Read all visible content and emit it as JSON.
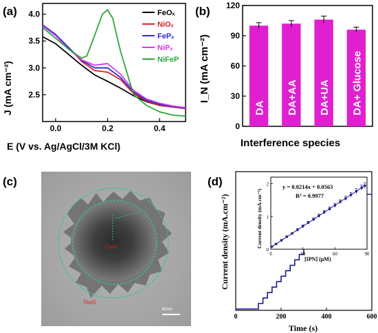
{
  "panels": {
    "a": {
      "label": "(a)"
    },
    "b": {
      "label": "(b)"
    },
    "c": {
      "label": "(c)",
      "core_label": "Core",
      "shell_label": "Shell",
      "scale_label": "80nm"
    },
    "d": {
      "label": "(d)",
      "equation": "y = 0.0214x + 0.0563",
      "r_squared": "R² = 0.9977"
    }
  },
  "chart_data": [
    {
      "panel": "a",
      "type": "line",
      "xlabel": "E (V vs. Ag/AgCl/3M KCl)",
      "ylabel": "J (mA cm⁻²)",
      "xlim": [
        -0.05,
        0.5
      ],
      "ylim": [
        2.0,
        4.2
      ],
      "xticks": [
        "0.0",
        "0.2",
        "0.4"
      ],
      "yticks": [
        "2.5",
        "3.0",
        "3.5",
        "4.0"
      ],
      "legend_position": "top-right",
      "series": [
        {
          "name": "FeOₓ",
          "color": "#000000",
          "x": [
            -0.05,
            0.0,
            0.05,
            0.1,
            0.15,
            0.2,
            0.25,
            0.3,
            0.35,
            0.4,
            0.45,
            0.5
          ],
          "y": [
            3.58,
            3.45,
            3.25,
            3.05,
            2.87,
            2.75,
            2.62,
            2.48,
            2.37,
            2.3,
            2.27,
            2.25
          ]
        },
        {
          "name": "NiOₓ",
          "color": "#e0202a",
          "x": [
            -0.05,
            0.0,
            0.05,
            0.1,
            0.15,
            0.2,
            0.25,
            0.3,
            0.35,
            0.4,
            0.45,
            0.5
          ],
          "y": [
            3.8,
            3.62,
            3.38,
            3.12,
            2.95,
            2.92,
            2.78,
            2.52,
            2.38,
            2.3,
            2.27,
            2.24
          ]
        },
        {
          "name": "FePₓ",
          "color": "#2a2adc",
          "x": [
            -0.05,
            0.0,
            0.05,
            0.1,
            0.15,
            0.2,
            0.25,
            0.3,
            0.35,
            0.4,
            0.45,
            0.5
          ],
          "y": [
            3.8,
            3.62,
            3.38,
            3.14,
            3.0,
            3.0,
            2.82,
            2.55,
            2.4,
            2.32,
            2.28,
            2.25
          ]
        },
        {
          "name": "NiPₓ",
          "color": "#d43ce8",
          "x": [
            -0.05,
            0.0,
            0.05,
            0.1,
            0.15,
            0.2,
            0.25,
            0.3,
            0.35,
            0.4,
            0.45,
            0.5
          ],
          "y": [
            3.78,
            3.6,
            3.35,
            3.15,
            3.05,
            3.08,
            2.88,
            2.58,
            2.42,
            2.34,
            2.29,
            2.26
          ]
        },
        {
          "name": "NiFeP",
          "color": "#2aa838",
          "x": [
            -0.05,
            0.0,
            0.05,
            0.1,
            0.12,
            0.15,
            0.18,
            0.2,
            0.22,
            0.25,
            0.3,
            0.35,
            0.4,
            0.45,
            0.5
          ],
          "y": [
            3.75,
            3.55,
            3.35,
            3.18,
            3.22,
            3.6,
            4.0,
            4.08,
            3.92,
            3.3,
            2.5,
            2.3,
            2.18,
            2.12,
            2.1
          ]
        }
      ]
    },
    {
      "panel": "b",
      "type": "bar",
      "xlabel": "Interference species",
      "ylabel": "I_N (mA cm⁻²)",
      "ylim": [
        0,
        120
      ],
      "yticks": [
        "0",
        "30",
        "60",
        "90",
        "120"
      ],
      "bar_color": "#e020d0",
      "categories": [
        "DA",
        "DA+AA",
        "DA+UA",
        "DA+ Glucose"
      ],
      "values": [
        100,
        102,
        106,
        96
      ],
      "errors": [
        3,
        3,
        3.5,
        2.5
      ]
    },
    {
      "panel": "d",
      "type": "line",
      "xlabel": "Time (s)",
      "ylabel": "Current  density (mA.cm⁻²)",
      "xlim": [
        0,
        600
      ],
      "xticks": [
        "0",
        "200",
        "400",
        "600"
      ],
      "line_color": "#1a1a8c",
      "steps_start_s": 100,
      "step_interval_s": 20,
      "final_value": 2.0,
      "inset": {
        "type": "scatter",
        "xlabel": "[IPN]  (μM)",
        "ylabel": "Current density (mA.cm⁻²)",
        "xlim": [
          0,
          90
        ],
        "ylim": [
          0,
          2.2
        ],
        "xticks": [
          "0",
          "30",
          "60",
          "90"
        ],
        "yticks": [
          "0",
          "1",
          "2"
        ],
        "x": [
          1,
          5,
          10,
          15,
          20,
          25,
          30,
          35,
          40,
          45,
          50,
          55,
          60,
          65,
          70,
          75,
          80,
          85,
          88
        ],
        "y": [
          0.08,
          0.16,
          0.27,
          0.38,
          0.48,
          0.59,
          0.7,
          0.81,
          0.91,
          1.02,
          1.13,
          1.23,
          1.34,
          1.45,
          1.55,
          1.66,
          1.77,
          1.88,
          1.94
        ],
        "errors": [
          0.02,
          0.02,
          0.03,
          0.03,
          0.03,
          0.04,
          0.04,
          0.04,
          0.05,
          0.05,
          0.05,
          0.06,
          0.06,
          0.06,
          0.07,
          0.07,
          0.08,
          0.08,
          0.09
        ]
      }
    }
  ]
}
